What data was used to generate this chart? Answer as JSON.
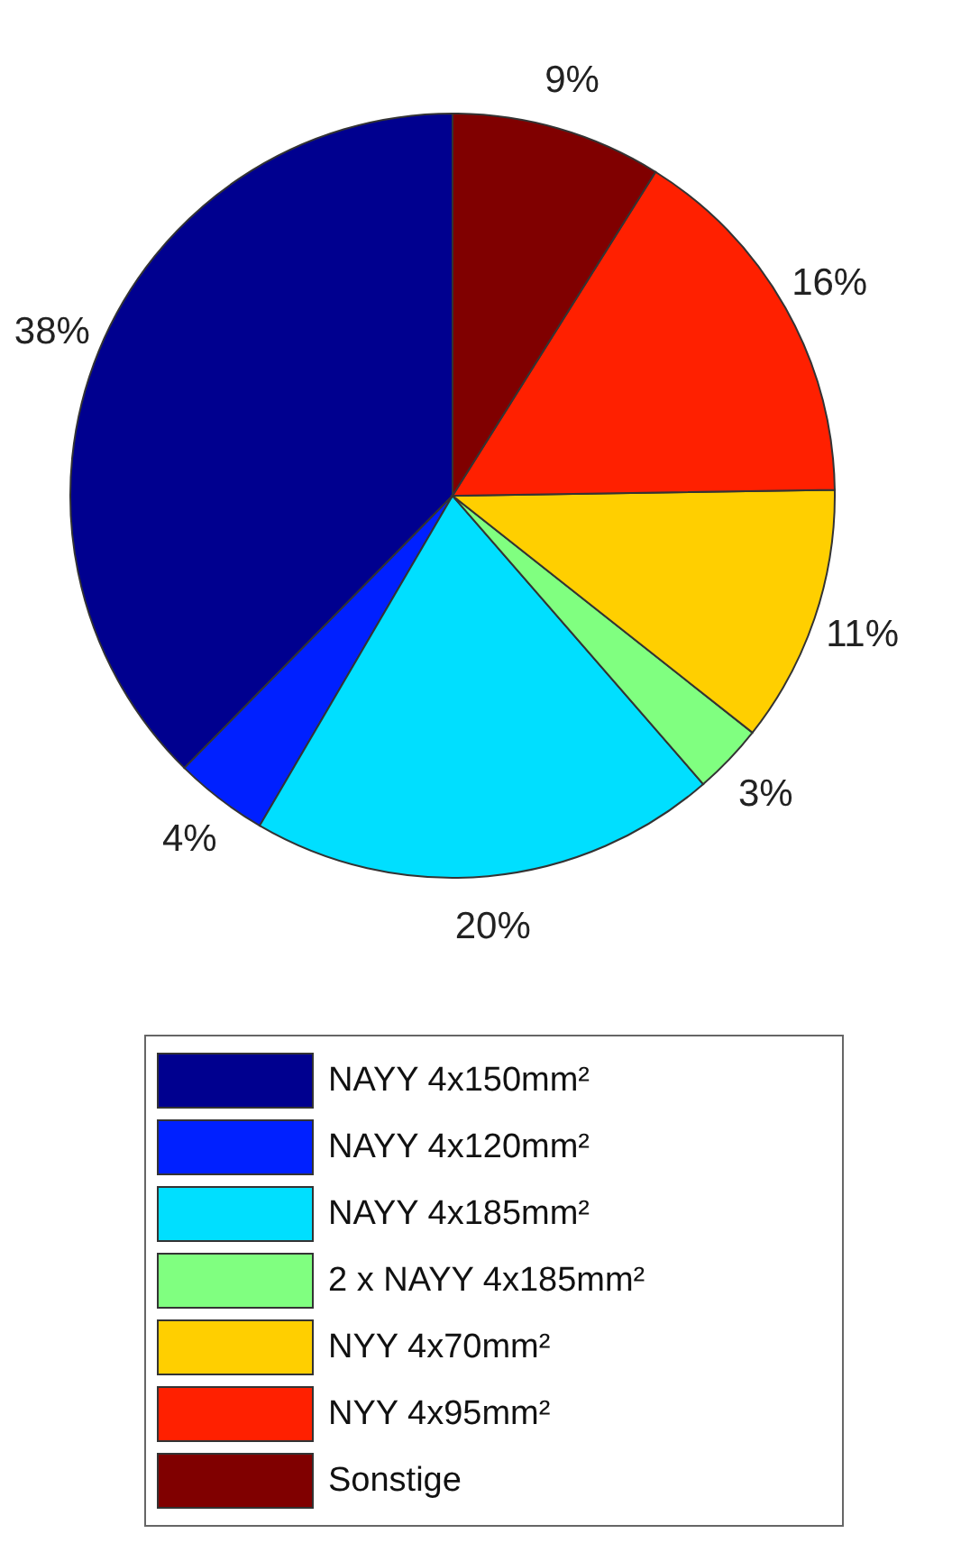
{
  "chart_data": {
    "type": "pie",
    "categories": [
      "NAYY 4x150mm²",
      "NAYY 4x120mm²",
      "NAYY 4x185mm²",
      "2 x NAYY 4x185mm²",
      "NYY 4x70mm²",
      "NYY 4x95mm²",
      "Sonstige"
    ],
    "values": [
      38,
      4,
      20,
      3,
      11,
      16,
      9
    ],
    "value_labels": [
      "38%",
      "4%",
      "20%",
      "3%",
      "11%",
      "16%",
      "9%"
    ],
    "colors": [
      "#00008f",
      "#0020ff",
      "#00dfff",
      "#80ff80",
      "#ffcf00",
      "#ff2000",
      "#800000"
    ],
    "legend": "bottom"
  }
}
